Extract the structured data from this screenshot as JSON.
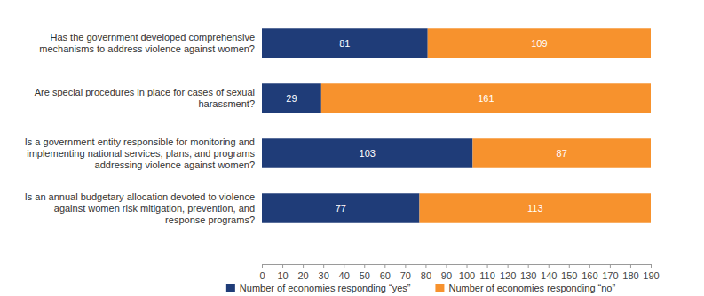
{
  "chart_data": {
    "type": "bar",
    "orientation": "horizontal",
    "stacked": true,
    "data_labels": true,
    "grid": false,
    "legend": "bottom",
    "categories": [
      "Has the government developed comprehensive mechanisms to address violence against women?",
      "Are special procedures in place for cases of sexual harassment?",
      "Is a government entity responsible for monitoring and implementing national services, plans, and programs addressing violence against women?",
      "Is an annual budgetary allocation devoted to violence against women risk mitigation, prevention, and response programs?"
    ],
    "series": [
      {
        "name": "Number of economies responding “yes”",
        "color": "#1f3c78",
        "values": [
          81,
          29,
          103,
          77
        ]
      },
      {
        "name": "Number of economies responding “no”",
        "color": "#f7922d",
        "values": [
          109,
          161,
          87,
          113
        ]
      }
    ],
    "xlim": [
      0,
      190
    ],
    "xticks": [
      0,
      10,
      20,
      30,
      40,
      50,
      60,
      70,
      80,
      90,
      100,
      110,
      120,
      130,
      140,
      150,
      160,
      170,
      180,
      190
    ]
  }
}
